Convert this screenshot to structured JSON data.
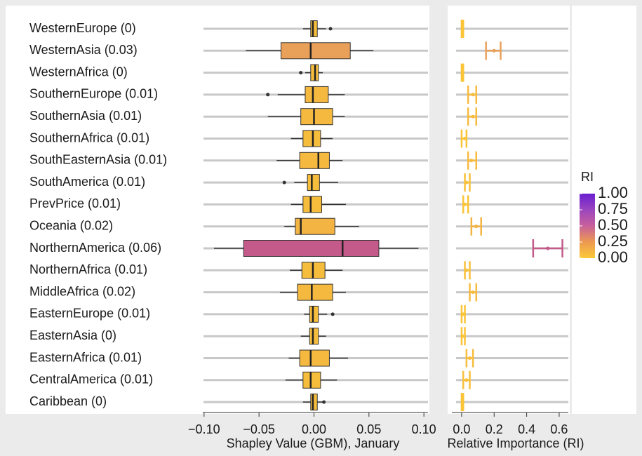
{
  "chart_data": [
    {
      "type": "box",
      "x_label": "Shapley Value (GBM), January",
      "categories": [
        "WesternEurope (0)",
        "WesternAsia (0.03)",
        "WesternAfrica (0)",
        "SouthernEurope (0.01)",
        "SouthernAsia (0.01)",
        "SouthernAfrica (0.01)",
        "SouthEasternAsia (0.01)",
        "SouthAmerica (0.01)",
        "PrevPrice (0.01)",
        "Oceania (0.02)",
        "NorthernAmerica (0.06)",
        "NorthernAfrica (0.01)",
        "MiddleAfrica (0.02)",
        "EasternEurope (0.01)",
        "EasternAsia (0)",
        "EasternAfrica (0.01)",
        "CentralAmerica (0.01)",
        "Caribbean (0)"
      ],
      "boxes": [
        {
          "whislo": -0.01,
          "q1": -0.003,
          "med": -0.001,
          "q3": 0.003,
          "whishi": 0.011,
          "fliers": [
            0.015
          ],
          "color": "#f6bd3c"
        },
        {
          "whislo": -0.062,
          "q1": -0.03,
          "med": -0.003,
          "q3": 0.033,
          "whishi": 0.054,
          "fliers": [],
          "color": "#e9a15a"
        },
        {
          "whislo": -0.008,
          "q1": -0.003,
          "med": 0.001,
          "q3": 0.004,
          "whishi": 0.008,
          "fliers": [
            -0.012
          ],
          "color": "#f6bd3c"
        },
        {
          "whislo": -0.033,
          "q1": -0.008,
          "med": -0.001,
          "q3": 0.013,
          "whishi": 0.028,
          "fliers": [
            -0.042
          ],
          "color": "#f5b940"
        },
        {
          "whislo": -0.042,
          "q1": -0.012,
          "med": 0,
          "q3": 0.017,
          "whishi": 0.028,
          "fliers": [],
          "color": "#f5b940"
        },
        {
          "whislo": -0.021,
          "q1": -0.01,
          "med": -0.001,
          "q3": 0.006,
          "whishi": 0.017,
          "fliers": [],
          "color": "#f6bd3c"
        },
        {
          "whislo": -0.034,
          "q1": -0.013,
          "med": 0.004,
          "q3": 0.014,
          "whishi": 0.026,
          "fliers": [],
          "color": "#f5b940"
        },
        {
          "whislo": -0.018,
          "q1": -0.006,
          "med": -0.002,
          "q3": 0.005,
          "whishi": 0.022,
          "fliers": [
            -0.027
          ],
          "color": "#f6bd3c"
        },
        {
          "whislo": -0.021,
          "q1": -0.01,
          "med": -0.003,
          "q3": 0.007,
          "whishi": 0.029,
          "fliers": [],
          "color": "#f6bd3c"
        },
        {
          "whislo": -0.027,
          "q1": -0.017,
          "med": -0.012,
          "q3": 0.019,
          "whishi": 0.041,
          "fliers": [],
          "color": "#f4b443"
        },
        {
          "whislo": -0.091,
          "q1": -0.064,
          "med": 0.026,
          "q3": 0.059,
          "whishi": 0.095,
          "fliers": [],
          "color": "#c35a8a"
        },
        {
          "whislo": -0.022,
          "q1": -0.011,
          "med": -0.001,
          "q3": 0.01,
          "whishi": 0.026,
          "fliers": [],
          "color": "#f6bd3c"
        },
        {
          "whislo": -0.031,
          "q1": -0.015,
          "med": -0.002,
          "q3": 0.017,
          "whishi": 0.029,
          "fliers": [],
          "color": "#f5b940"
        },
        {
          "whislo": -0.009,
          "q1": -0.004,
          "med": -0.001,
          "q3": 0.004,
          "whishi": 0.012,
          "fliers": [
            0.017
          ],
          "color": "#f6bd3c"
        },
        {
          "whislo": -0.012,
          "q1": -0.004,
          "med": -0.001,
          "q3": 0.004,
          "whishi": 0.011,
          "fliers": [],
          "color": "#f6bd3c"
        },
        {
          "whislo": -0.023,
          "q1": -0.013,
          "med": -0.003,
          "q3": 0.014,
          "whishi": 0.031,
          "fliers": [],
          "color": "#f5b940"
        },
        {
          "whislo": -0.026,
          "q1": -0.01,
          "med": -0.003,
          "q3": 0.006,
          "whishi": 0.021,
          "fliers": [],
          "color": "#f6bd3c"
        },
        {
          "whislo": -0.01,
          "q1": -0.003,
          "med": -0.001,
          "q3": 0.003,
          "whishi": 0.009,
          "fliers": [
            0.009
          ],
          "color": "#f6bd3c"
        }
      ],
      "xlim": [
        -0.105,
        0.105
      ],
      "xticks": [
        {
          "value": -0.1,
          "label": "−0.10"
        },
        {
          "value": -0.05,
          "label": "−0.05"
        },
        {
          "value": 0,
          "label": "0.00"
        },
        0.05,
        {
          "value": 0.1,
          "label": "0.10"
        }
      ]
    },
    {
      "type": "errorbar",
      "x_label": "Relative Importance (RI)",
      "values": [
        0.005,
        0.2,
        0.005,
        0.07,
        0.07,
        0.02,
        0.06,
        0.03,
        0.02,
        0.09,
        0.53,
        0.03,
        0.07,
        0.01,
        0.01,
        0.05,
        0.03,
        0.005
      ],
      "lower": [
        0,
        0.15,
        0,
        0.04,
        0.04,
        0,
        0.04,
        0.02,
        0.01,
        0.06,
        0.44,
        0.02,
        0.05,
        0,
        0,
        0.03,
        0.01,
        0
      ],
      "upper": [
        0.01,
        0.24,
        0.01,
        0.09,
        0.09,
        0.03,
        0.09,
        0.05,
        0.04,
        0.12,
        0.62,
        0.05,
        0.09,
        0.02,
        0.02,
        0.07,
        0.05,
        0.01
      ],
      "colors": [
        "#fbc437",
        "#e9a15a",
        "#fbc437",
        "#f7bb3f",
        "#f7bb3f",
        "#fbc437",
        "#f7bb3f",
        "#f9c03b",
        "#fbc437",
        "#f4b443",
        "#c35a8a",
        "#f9c03b",
        "#f7bb3f",
        "#fbc437",
        "#fbc437",
        "#f8bd3d",
        "#f9c03b",
        "#fbc437"
      ],
      "xlim": [
        -0.086,
        0.665
      ],
      "xticks": [
        {
          "value": 0,
          "label": "0.0"
        },
        0.2,
        0.4,
        0.6
      ],
      "colorbar": {
        "title": "RI",
        "lim": [
          0,
          1
        ],
        "ticks": [
          {
            "value": 1,
            "label": "1.00"
          },
          0.75,
          {
            "value": 0.5,
            "label": "0.50"
          },
          0.25,
          {
            "value": 0,
            "label": "0.00"
          }
        ],
        "colors": [
          "#fcc93a",
          "#ec9a50",
          "#c8609a",
          "#9b45bf",
          "#6a1fd1"
        ]
      }
    }
  ]
}
